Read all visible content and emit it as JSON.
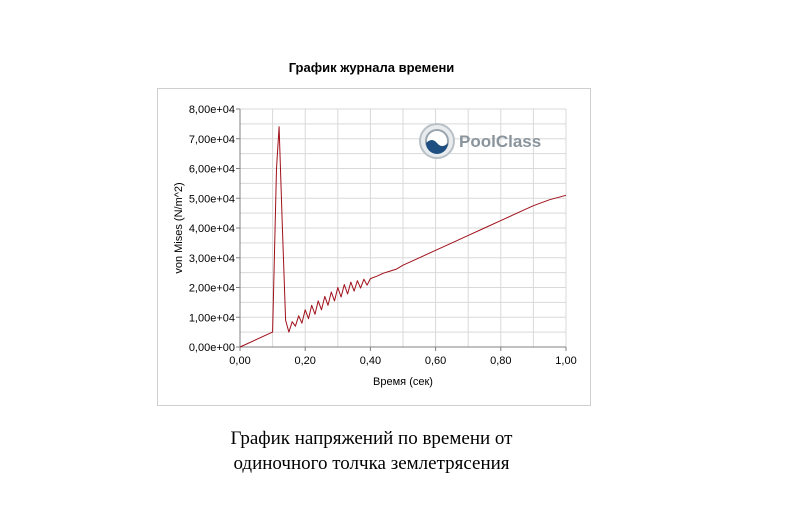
{
  "chart_data": {
    "type": "line",
    "title": "График журнала времени",
    "xlabel": "Время (сек)",
    "ylabel": "von Mises (N/m^2)",
    "xlim": [
      0,
      1
    ],
    "ylim": [
      0,
      80000
    ],
    "x_ticks": [
      "0,00",
      "0,20",
      "0,40",
      "0,60",
      "0,80",
      "1,00"
    ],
    "x_tick_values": [
      0,
      0.2,
      0.4,
      0.6,
      0.8,
      1.0
    ],
    "y_ticks": [
      "0,00e+00",
      "1,00e+04",
      "2,00e+04",
      "3,00e+04",
      "4,00e+04",
      "5,00e+04",
      "6,00e+04",
      "7,00e+04",
      "8,00e+04"
    ],
    "y_tick_values": [
      0,
      10000,
      20000,
      30000,
      40000,
      50000,
      60000,
      70000,
      80000
    ],
    "grid": true,
    "series": [
      {
        "color": "#a0101a",
        "x": [
          0,
          0.1,
          0.112,
          0.12,
          0.13,
          0.14,
          0.15,
          0.16,
          0.17,
          0.18,
          0.19,
          0.2,
          0.21,
          0.22,
          0.23,
          0.24,
          0.25,
          0.26,
          0.27,
          0.28,
          0.29,
          0.3,
          0.31,
          0.32,
          0.33,
          0.34,
          0.35,
          0.36,
          0.37,
          0.38,
          0.39,
          0.4,
          0.42,
          0.44,
          0.46,
          0.48,
          0.5,
          0.55,
          0.6,
          0.65,
          0.7,
          0.75,
          0.8,
          0.85,
          0.9,
          0.95,
          1.0
        ],
        "y": [
          0,
          5000,
          60000,
          74000,
          40000,
          9000,
          5000,
          8500,
          7000,
          10500,
          8000,
          12500,
          9500,
          14000,
          11000,
          15500,
          12500,
          17000,
          14000,
          18500,
          15500,
          20000,
          16800,
          21000,
          17800,
          21800,
          18800,
          22300,
          19800,
          22800,
          20800,
          23000,
          23800,
          24800,
          25500,
          26200,
          27500,
          30000,
          32500,
          35000,
          37500,
          40000,
          42500,
          45000,
          47500,
          49500,
          51000
        ]
      }
    ]
  },
  "watermark": {
    "text": "PoolClass",
    "icon": "logo-icon",
    "color": "#7f8c96"
  },
  "caption": {
    "line1": "График напряжений по времени от",
    "line2": "одиночного толчка землетрясения"
  }
}
